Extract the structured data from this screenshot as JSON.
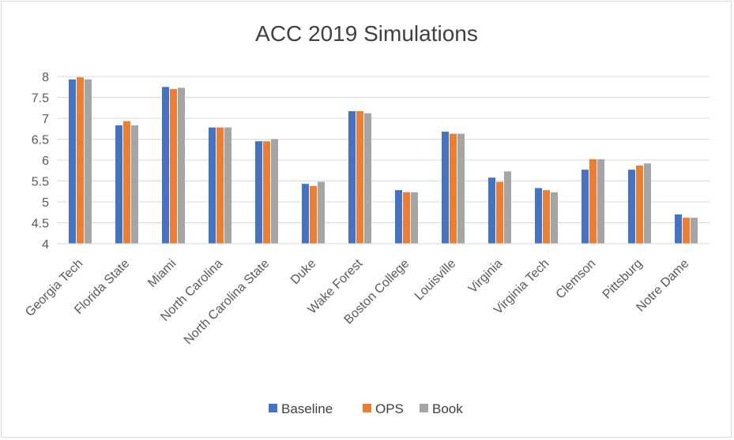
{
  "chart_data": {
    "type": "bar",
    "title": "ACC 2019 Simulations",
    "xlabel": "",
    "ylabel": "",
    "ylim": [
      4,
      8
    ],
    "yticks": [
      "4",
      "4.5",
      "5",
      "5.5",
      "6",
      "6.5",
      "7",
      "7.5",
      "8"
    ],
    "grid": true,
    "legend_position": "bottom",
    "categories": [
      "Georgia Tech",
      "Florida State",
      "Miami",
      "North Carolina",
      "North Carolina State",
      "Duke",
      "Wake Forest",
      "Boston College",
      "Louisville",
      "Virginia",
      "Virginia Tech",
      "Clemson",
      "Pittsburg",
      "Notre Dame"
    ],
    "series": [
      {
        "name": "Baseline",
        "color": "#4472c4",
        "values": [
          7.93,
          6.83,
          7.75,
          6.78,
          6.45,
          5.43,
          7.17,
          5.28,
          6.68,
          5.58,
          5.33,
          5.77,
          5.77,
          4.7
        ]
      },
      {
        "name": "OPS",
        "color": "#ed7d31",
        "values": [
          7.98,
          6.93,
          7.7,
          6.78,
          6.45,
          5.38,
          7.17,
          5.23,
          6.63,
          5.48,
          5.28,
          6.02,
          5.87,
          4.62
        ]
      },
      {
        "name": "Book",
        "color": "#a5a5a5",
        "values": [
          7.93,
          6.83,
          7.73,
          6.78,
          6.5,
          5.48,
          7.12,
          5.23,
          6.63,
          5.73,
          5.23,
          6.02,
          5.92,
          4.62
        ]
      }
    ]
  }
}
